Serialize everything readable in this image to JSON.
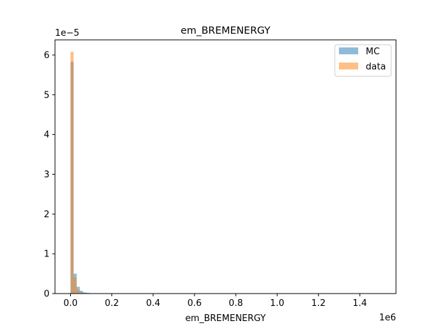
{
  "chart_data": {
    "type": "bar",
    "title": "em_BREMENERGY",
    "xlabel": "em_BREMENERGY",
    "ylabel": "",
    "x_multiplier": "1e6",
    "y_multiplier": "1e−5",
    "xlim": [
      -0.075,
      1.575
    ],
    "ylim": [
      0,
      6.38
    ],
    "xticks": [
      {
        "value": 0.0,
        "label": "0.0"
      },
      {
        "value": 0.2,
        "label": "0.2"
      },
      {
        "value": 0.4,
        "label": "0.4"
      },
      {
        "value": 0.6,
        "label": "0.6"
      },
      {
        "value": 0.8,
        "label": "0.8"
      },
      {
        "value": 1.0,
        "label": "1.0"
      },
      {
        "value": 1.2,
        "label": "1.2"
      },
      {
        "value": 1.4,
        "label": "1.4"
      }
    ],
    "yticks": [
      {
        "value": 0,
        "label": "0"
      },
      {
        "value": 1,
        "label": "1"
      },
      {
        "value": 2,
        "label": "2"
      },
      {
        "value": 3,
        "label": "3"
      },
      {
        "value": 4,
        "label": "4"
      },
      {
        "value": 5,
        "label": "5"
      },
      {
        "value": 6,
        "label": "6"
      }
    ],
    "bin_width": 0.015,
    "bin_edges_start": 0.0,
    "grid": false,
    "legend_position": "top-right",
    "series": [
      {
        "name": "MC",
        "color": "#1f77b4",
        "opacity": 0.5,
        "values": [
          5.83,
          0.5,
          0.17,
          0.07,
          0.03,
          0.02,
          0.01
        ]
      },
      {
        "name": "data",
        "color": "#ff7f0e",
        "opacity": 0.5,
        "values": [
          6.08,
          0.4,
          0.09,
          0.03,
          0.01,
          0.005,
          0.003
        ]
      }
    ]
  }
}
